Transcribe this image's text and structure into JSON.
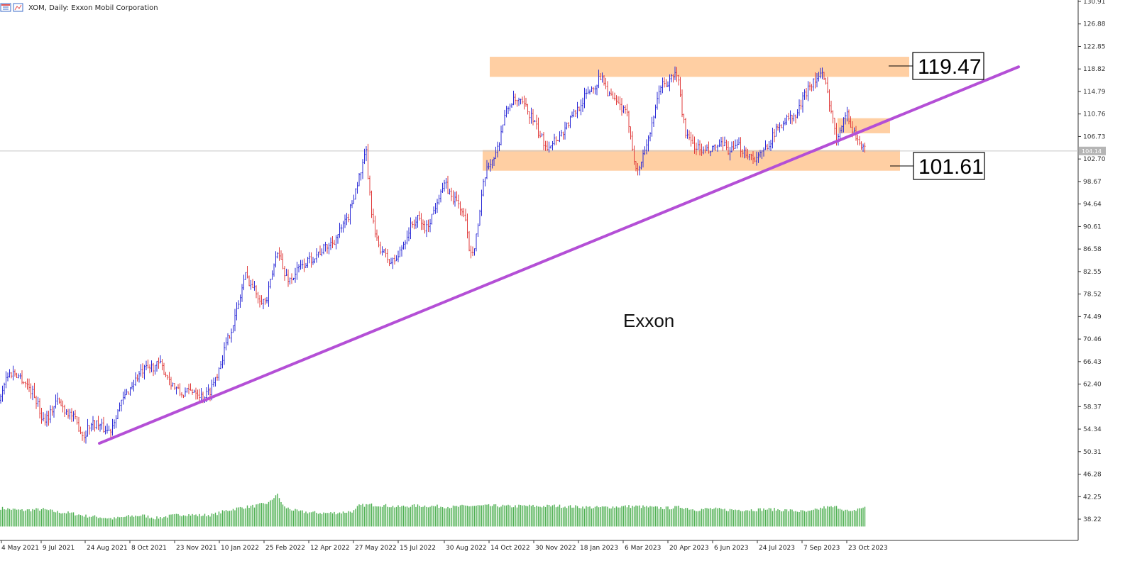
{
  "header": {
    "symbol_text": "XOM, Daily:  Exxon Mobil Corporation",
    "icon": "chart-window-icon"
  },
  "colors": {
    "bull": "#2b2bd6",
    "bear": "#e03c3c",
    "volume": "#4caf50",
    "trendline": "#b44fd6",
    "zone": "#ffcfa3",
    "price_line": "#c8c8c8"
  },
  "chart_data": {
    "type": "candlestick",
    "title": "",
    "annotation": "Exxon",
    "y_axis": {
      "ticks": [
        "130.91",
        "126.88",
        "122.85",
        "118.82",
        "114.79",
        "110.76",
        "106.73",
        "102.70",
        "98.67",
        "94.64",
        "90.61",
        "86.58",
        "82.55",
        "78.52",
        "74.49",
        "70.46",
        "66.43",
        "62.40",
        "58.37",
        "54.34",
        "50.31",
        "46.28",
        "42.25",
        "38.22"
      ],
      "range": [
        36.9,
        131.0
      ]
    },
    "x_axis": {
      "ticks": [
        "4 May 2021",
        "9 Jul 2021",
        "24 Aug 2021",
        "8 Oct 2021",
        "23 Nov 2021",
        "10 Jan 2022",
        "25 Feb 2022",
        "12 Apr 2022",
        "27 May 2022",
        "15 Jul 2022",
        "30 Aug 2022",
        "14 Oct 2022",
        "30 Nov 2022",
        "18 Jan 2023",
        "6 Mar 2023",
        "20 Apr 2023",
        "6 Jun 2023",
        "24 Jul 2023",
        "7 Sep 2023",
        "23 Oct 2023"
      ]
    },
    "current_price": "104.14",
    "levels": [
      {
        "name": "resistance",
        "label": "119.47",
        "value": 119.47,
        "zone": [
          117.4,
          121.0
        ]
      },
      {
        "name": "support",
        "label": "101.61",
        "value": 101.61,
        "zone": [
          100.6,
          104.3
        ]
      }
    ],
    "minor_zone": [
      107.3,
      110.0
    ],
    "trendline": {
      "start": [
        "24 Aug 2021",
        51.8
      ],
      "end": [
        "after 23 Oct 2023",
        119.2
      ]
    },
    "path": [
      [
        0,
        59.5
      ],
      [
        4,
        62
      ],
      [
        10,
        64
      ],
      [
        20,
        64.5
      ],
      [
        30,
        63.5
      ],
      [
        40,
        62
      ],
      [
        50,
        60
      ],
      [
        60,
        56
      ],
      [
        70,
        57
      ],
      [
        80,
        59.5
      ],
      [
        90,
        58
      ],
      [
        100,
        57
      ],
      [
        110,
        55
      ],
      [
        118,
        53
      ],
      [
        125,
        55
      ],
      [
        135,
        55.5
      ],
      [
        145,
        54.5
      ],
      [
        155,
        54
      ],
      [
        165,
        57.5
      ],
      [
        175,
        60
      ],
      [
        185,
        62
      ],
      [
        195,
        64
      ],
      [
        205,
        65
      ],
      [
        215,
        65.5
      ],
      [
        225,
        66
      ],
      [
        235,
        64
      ],
      [
        245,
        62
      ],
      [
        255,
        60.5
      ],
      [
        265,
        61
      ],
      [
        275,
        61.5
      ],
      [
        285,
        60
      ],
      [
        295,
        61
      ],
      [
        305,
        64
      ],
      [
        315,
        68
      ],
      [
        325,
        72
      ],
      [
        335,
        76
      ],
      [
        345,
        82
      ],
      [
        355,
        80
      ],
      [
        365,
        78
      ],
      [
        375,
        77
      ],
      [
        385,
        83
      ],
      [
        392,
        87
      ],
      [
        400,
        82
      ],
      [
        410,
        81
      ],
      [
        420,
        83
      ],
      [
        430,
        84
      ],
      [
        440,
        85
      ],
      [
        450,
        86
      ],
      [
        460,
        87
      ],
      [
        470,
        88
      ],
      [
        480,
        90
      ],
      [
        490,
        92
      ],
      [
        500,
        97
      ],
      [
        510,
        101
      ],
      [
        516,
        104
      ],
      [
        520,
        97
      ],
      [
        525,
        92
      ],
      [
        530,
        88
      ],
      [
        540,
        86
      ],
      [
        550,
        84
      ],
      [
        560,
        85
      ],
      [
        570,
        88
      ],
      [
        580,
        91
      ],
      [
        590,
        92
      ],
      [
        600,
        90
      ],
      [
        610,
        93
      ],
      [
        620,
        97
      ],
      [
        628,
        98
      ],
      [
        635,
        96
      ],
      [
        645,
        95
      ],
      [
        655,
        92
      ],
      [
        662,
        86
      ],
      [
        668,
        87
      ],
      [
        675,
        92
      ],
      [
        682,
        99
      ],
      [
        690,
        102
      ],
      [
        700,
        104
      ],
      [
        710,
        110
      ],
      [
        720,
        113
      ],
      [
        730,
        113
      ],
      [
        740,
        112
      ],
      [
        750,
        110
      ],
      [
        760,
        107
      ],
      [
        770,
        105
      ],
      [
        780,
        106
      ],
      [
        790,
        107
      ],
      [
        800,
        109
      ],
      [
        810,
        111
      ],
      [
        820,
        113
      ],
      [
        830,
        115
      ],
      [
        840,
        116
      ],
      [
        848,
        118
      ],
      [
        855,
        115
      ],
      [
        865,
        113
      ],
      [
        875,
        112
      ],
      [
        885,
        110
      ],
      [
        892,
        104
      ],
      [
        898,
        100
      ],
      [
        905,
        103
      ],
      [
        912,
        106
      ],
      [
        920,
        109
      ],
      [
        930,
        116
      ],
      [
        940,
        116
      ],
      [
        950,
        118
      ],
      [
        956,
        117
      ],
      [
        960,
        112
      ],
      [
        965,
        108
      ],
      [
        970,
        106
      ],
      [
        980,
        105
      ],
      [
        990,
        104
      ],
      [
        1000,
        104
      ],
      [
        1010,
        105
      ],
      [
        1020,
        105
      ],
      [
        1030,
        104
      ],
      [
        1040,
        105
      ],
      [
        1050,
        104
      ],
      [
        1060,
        103
      ],
      [
        1070,
        103
      ],
      [
        1080,
        105
      ],
      [
        1090,
        107
      ],
      [
        1100,
        109
      ],
      [
        1110,
        110
      ],
      [
        1120,
        110
      ],
      [
        1130,
        113
      ],
      [
        1140,
        116
      ],
      [
        1150,
        117
      ],
      [
        1158,
        118
      ],
      [
        1165,
        115
      ],
      [
        1172,
        111
      ],
      [
        1178,
        106
      ],
      [
        1185,
        109
      ],
      [
        1192,
        111
      ],
      [
        1198,
        109
      ],
      [
        1205,
        107
      ],
      [
        1210,
        106
      ],
      [
        1215,
        104.5
      ],
      [
        1220,
        104.1
      ]
    ],
    "volume_path": [
      [
        0,
        40.2
      ],
      [
        30,
        39.8
      ],
      [
        60,
        40
      ],
      [
        80,
        39.5
      ],
      [
        100,
        39.3
      ],
      [
        120,
        38.8
      ],
      [
        140,
        38.6
      ],
      [
        160,
        38.3
      ],
      [
        180,
        38.7
      ],
      [
        200,
        38.9
      ],
      [
        220,
        38.4
      ],
      [
        240,
        38.8
      ],
      [
        260,
        39.1
      ],
      [
        280,
        38.9
      ],
      [
        300,
        39
      ],
      [
        320,
        39.8
      ],
      [
        340,
        40.3
      ],
      [
        360,
        40.6
      ],
      [
        380,
        41.2
      ],
      [
        390,
        42.8
      ],
      [
        400,
        40.4
      ],
      [
        420,
        39.6
      ],
      [
        440,
        39.4
      ],
      [
        460,
        39.3
      ],
      [
        480,
        39.4
      ],
      [
        500,
        39.7
      ],
      [
        505,
        40.6
      ],
      [
        520,
        40.8
      ],
      [
        540,
        40.7
      ],
      [
        560,
        40.4
      ],
      [
        580,
        40.6
      ],
      [
        600,
        40.6
      ],
      [
        620,
        40.5
      ],
      [
        640,
        40.4
      ],
      [
        660,
        40.6
      ],
      [
        680,
        40.6
      ],
      [
        700,
        40.6
      ],
      [
        720,
        40.5
      ],
      [
        740,
        40.6
      ],
      [
        760,
        40.5
      ],
      [
        780,
        40.6
      ],
      [
        800,
        40.5
      ],
      [
        820,
        40.4
      ],
      [
        840,
        40.3
      ],
      [
        860,
        40.4
      ],
      [
        880,
        40.5
      ],
      [
        900,
        40.5
      ],
      [
        920,
        40.3
      ],
      [
        940,
        40.2
      ],
      [
        960,
        40.4
      ],
      [
        980,
        39.9
      ],
      [
        1000,
        40.1
      ],
      [
        1020,
        39.9
      ],
      [
        1040,
        39.9
      ],
      [
        1060,
        39.9
      ],
      [
        1080,
        40
      ],
      [
        1100,
        39.9
      ],
      [
        1120,
        39.7
      ],
      [
        1140,
        39.5
      ],
      [
        1160,
        40.3
      ],
      [
        1180,
        40.4
      ],
      [
        1200,
        39.4
      ],
      [
        1210,
        40.2
      ],
      [
        1220,
        40.3
      ]
    ]
  }
}
